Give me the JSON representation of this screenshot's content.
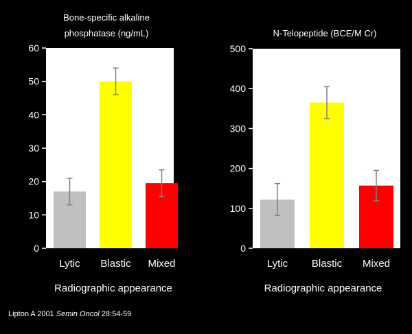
{
  "chart_data": [
    {
      "type": "bar",
      "title_lines": [
        "Bone-specific alkaline",
        "phosphatase (ng/mL)"
      ],
      "categories": [
        "Lytic",
        "Blastic",
        "Mixed"
      ],
      "values": [
        17,
        50,
        19.5
      ],
      "errors": [
        4,
        4,
        4
      ],
      "bar_colors": [
        "#c0c0c0",
        "#ffff00",
        "#ff0000"
      ],
      "ylim": [
        0,
        60
      ],
      "yticks": [
        "0",
        "10",
        "20",
        "30",
        "40",
        "50",
        "60"
      ],
      "xlabel": "Radiographic appearance",
      "ylabel": "",
      "grid": false,
      "legend": "none"
    },
    {
      "type": "bar",
      "title_lines": [
        "N-Telopeptide (BCE/M Cr)"
      ],
      "categories": [
        "Lytic",
        "Blastic",
        "Mixed"
      ],
      "values": [
        122,
        365,
        157
      ],
      "errors": [
        40,
        40,
        38
      ],
      "bar_colors": [
        "#c0c0c0",
        "#ffff00",
        "#ff0000"
      ],
      "ylim": [
        0,
        500
      ],
      "yticks": [
        "0",
        "100",
        "200",
        "300",
        "400",
        "500"
      ],
      "xlabel": "Radiographic appearance",
      "ylabel": "",
      "grid": false,
      "legend": "none"
    }
  ],
  "citation": {
    "author_year": "Lipton A 2001",
    "journal": "Semin Oncol",
    "volume_pages": "28:54-59"
  },
  "colors": {
    "background": "#000000",
    "panel": "#ffffff",
    "text": "#ffffff",
    "error_bar": "#808080"
  }
}
